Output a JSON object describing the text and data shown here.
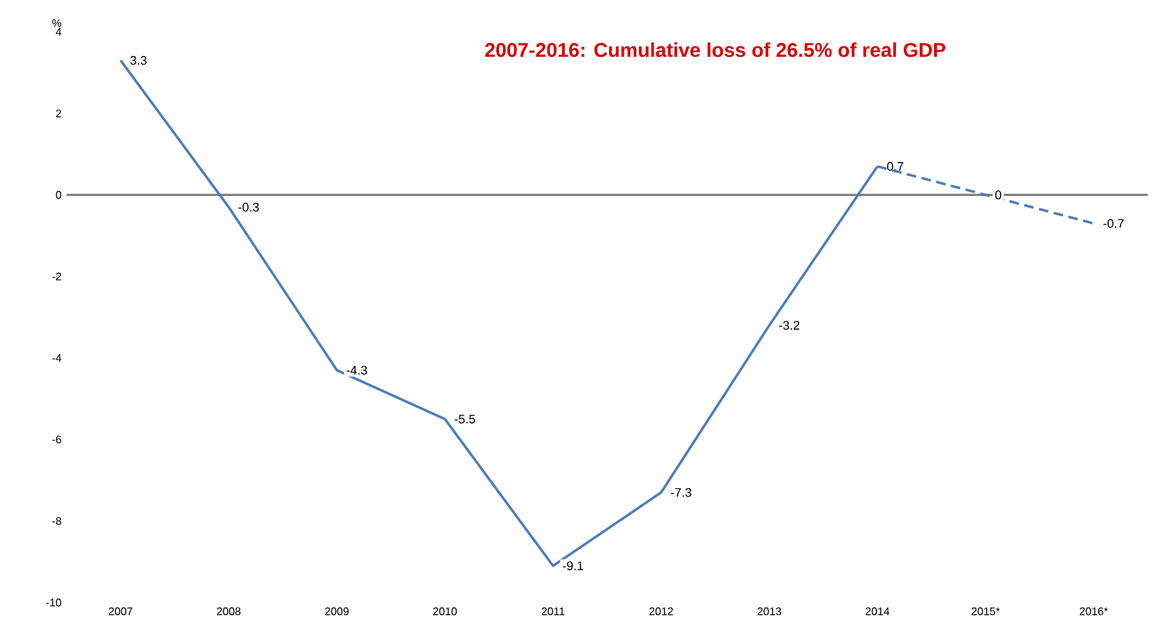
{
  "chart_data": {
    "type": "line",
    "title": "2007-2016: Cumulative loss of 26.5% of real GDP",
    "ylabel": "%",
    "categories": [
      "2007",
      "2008",
      "2009",
      "2010",
      "2011",
      "2012",
      "2013",
      "2014",
      "2015*",
      "2016*"
    ],
    "series": [
      {
        "color": "#4a7cc0",
        "line_style": "solid",
        "values": [
          3.3,
          -0.3,
          -4.3,
          -5.5,
          -9.1,
          -7.3,
          -3.2,
          0.7,
          null,
          null
        ],
        "value_labels": [
          "3.3",
          "-0.3",
          "-4.3",
          "-5.5",
          "-9.1",
          "-7.3",
          "-3.2",
          "0.7",
          null,
          null
        ]
      },
      {
        "color": "#4a7cc0",
        "line_style": "dashed",
        "values": [
          null,
          null,
          null,
          null,
          null,
          null,
          null,
          0.7,
          0,
          -0.7
        ],
        "value_labels": [
          null,
          null,
          null,
          null,
          null,
          null,
          null,
          null,
          "0",
          "-0.7"
        ]
      }
    ],
    "ylim": [
      -10,
      4
    ],
    "yticks": [
      -10,
      -8,
      -6,
      -4,
      -2,
      0,
      2,
      4
    ],
    "ref_lines": [
      {
        "axis": "y",
        "value": 0,
        "color": "#808080"
      }
    ],
    "marker": "none",
    "grid": false
  }
}
